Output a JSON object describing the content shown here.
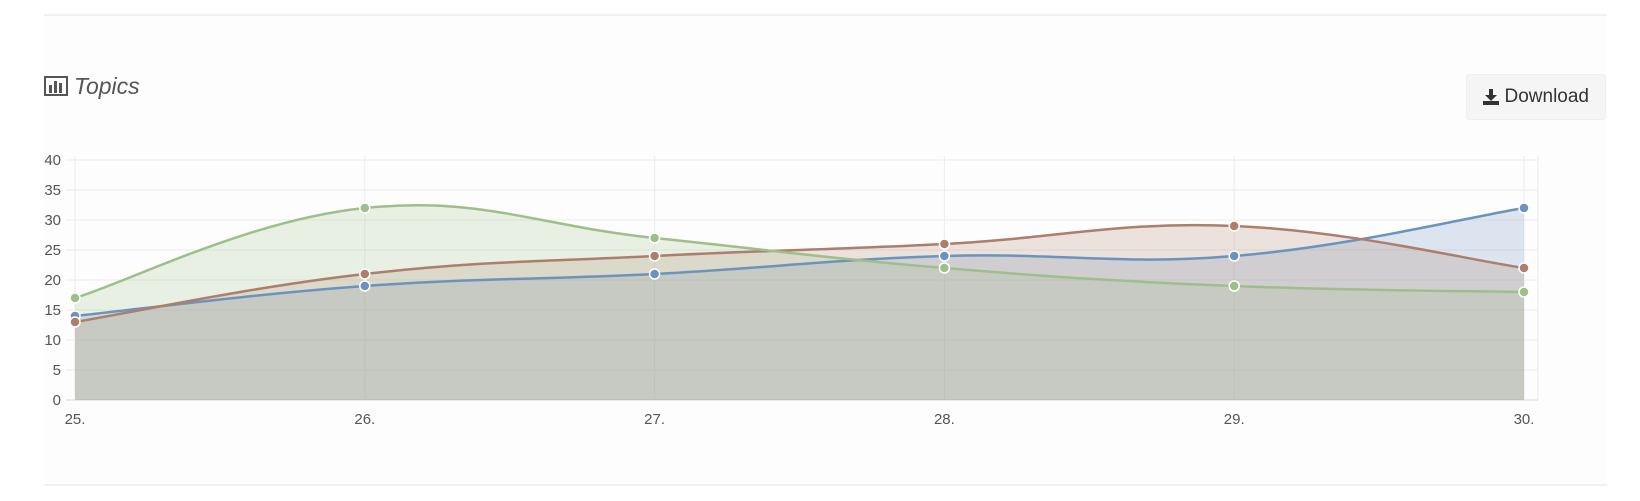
{
  "header": {
    "title": "Topics",
    "title_icon": "bar-chart-icon",
    "download_label": "Download",
    "download_icon": "download-icon"
  },
  "chart_data": {
    "type": "area",
    "title": "Topics",
    "xlabel": "",
    "ylabel": "",
    "categories": [
      "25.",
      "26.",
      "27.",
      "28.",
      "29.",
      "30."
    ],
    "ylim": [
      0,
      40
    ],
    "yticks": [
      0,
      5,
      10,
      15,
      20,
      25,
      30,
      35,
      40
    ],
    "grid": true,
    "legend": "none",
    "series": [
      {
        "values": [
          14,
          19,
          21,
          24,
          24,
          32
        ],
        "color": "#6b93bd"
      },
      {
        "values": [
          13,
          21,
          24,
          26,
          29,
          22
        ],
        "color": "#ad7e6c"
      },
      {
        "values": [
          17,
          32,
          27,
          22,
          19,
          18
        ],
        "color": "#9ebf89"
      }
    ]
  }
}
